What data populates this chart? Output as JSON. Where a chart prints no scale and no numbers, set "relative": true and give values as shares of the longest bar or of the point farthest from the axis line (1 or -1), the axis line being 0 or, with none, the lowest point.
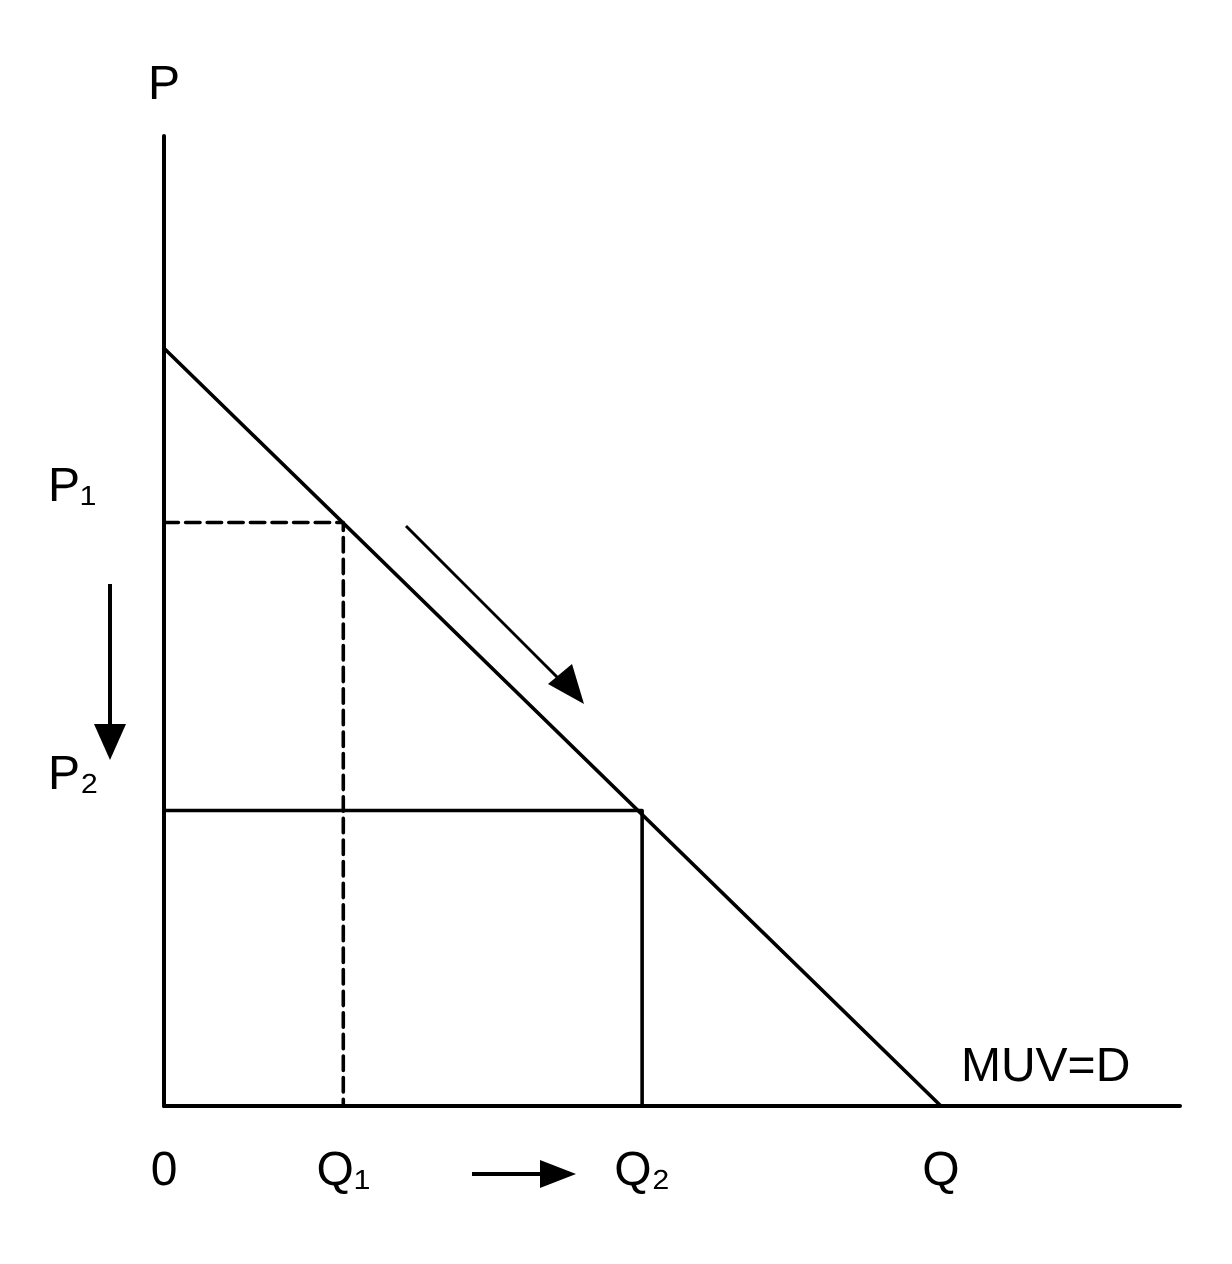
{
  "chart_data": {
    "type": "line",
    "ylabel": "P",
    "relative": true,
    "categories": [
      "0",
      null,
      null,
      "Q₁",
      null,
      null,
      null,
      null,
      "Q₂",
      null,
      null,
      null,
      null,
      "Q",
      null,
      null,
      null,
      null
    ],
    "series": [
      {
        "name": "MUV=D",
        "color": "#000000",
        "x": [
          "0",
          "Q"
        ],
        "values": [
          1,
          0
        ],
        "line_style": "solid"
      },
      {
        "color": "#000000",
        "x": [
          "0",
          "Q₁",
          "Q₁"
        ],
        "values": [
          0.77,
          0.77,
          0
        ],
        "line_style": "dashed"
      },
      {
        "color": "#000000",
        "x": [
          "0",
          "Q₂",
          "Q₂"
        ],
        "values": [
          0.39,
          0.39,
          0
        ],
        "line_style": "solid"
      }
    ],
    "annotations": [
      {
        "text": "P₁",
        "x": "0",
        "y": 0.77
      },
      {
        "text": "P₂",
        "x": "0",
        "y": 0.39
      }
    ],
    "grid": false,
    "legend": false,
    "marker": "none"
  }
}
